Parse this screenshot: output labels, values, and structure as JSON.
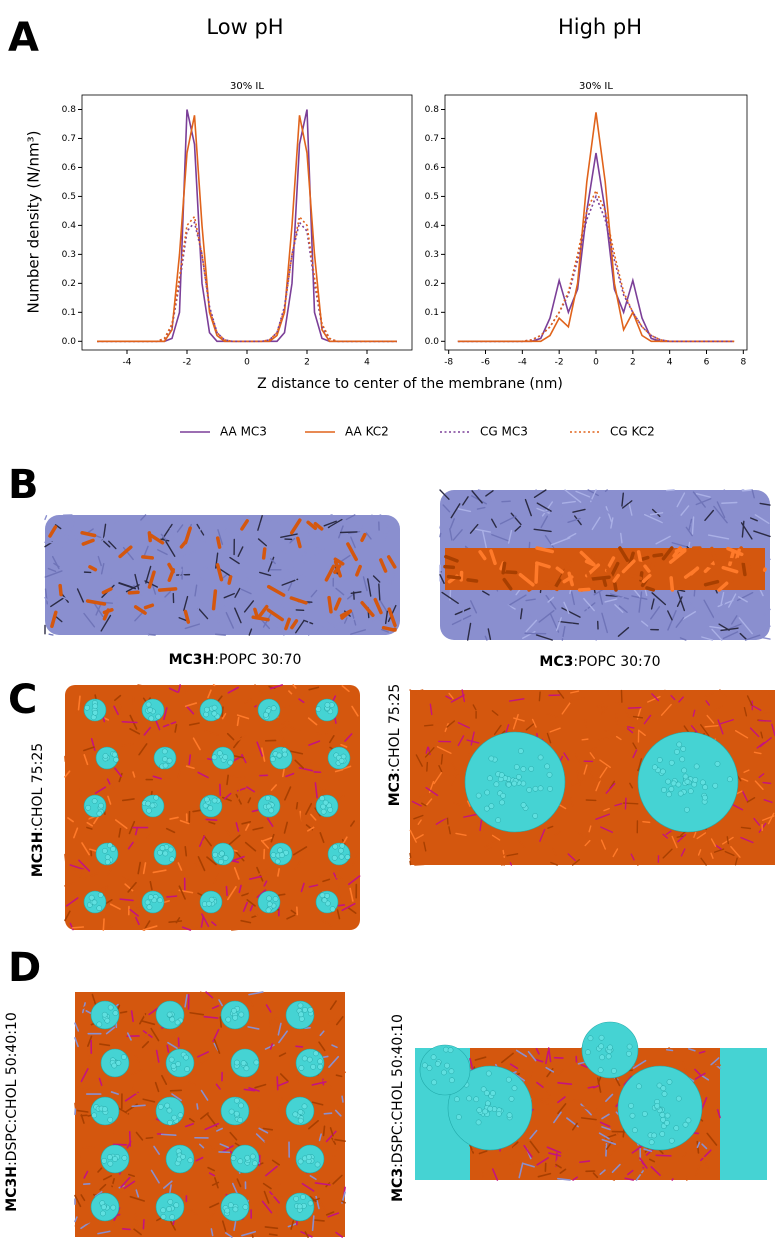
{
  "panel_labels": [
    "A",
    "B",
    "C",
    "D"
  ],
  "column_titles": [
    "Low pH",
    "High pH"
  ],
  "xlabel": "Z distance to center of the membrane (nm)",
  "captions": {
    "B": [
      {
        "bold": "MC3H",
        "text": ":POPC 30:70"
      },
      {
        "bold": "MC3",
        "text": ":POPC 30:70"
      }
    ],
    "C": [
      {
        "bold": "MC3H",
        "text": ":CHOL 75:25"
      },
      {
        "bold": "MC3",
        "text": ":CHOL 75:25"
      }
    ],
    "D": [
      {
        "bold": "MC3H",
        "text": ":DSPC:CHOL 50:40:10"
      },
      {
        "bold": "MC3",
        "text": ":DSPC:CHOL 50:40:10"
      }
    ]
  },
  "chart_data": [
    {
      "type": "line",
      "title": "30% IL",
      "ylabel": "Number density (N/nm³)",
      "x": [
        -5,
        -3,
        -2.75,
        -2.5,
        -2.25,
        -2,
        -1.75,
        -1.5,
        -1.25,
        -1,
        -0.75,
        -0.5,
        0,
        0.5,
        0.75,
        1,
        1.25,
        1.5,
        1.75,
        2,
        2.25,
        2.5,
        2.75,
        3,
        5
      ],
      "series": [
        {
          "name": "AA MC3",
          "color": "#7b3f98",
          "linestyle": "solid",
          "values": [
            0,
            0,
            0,
            0.01,
            0.1,
            0.8,
            0.68,
            0.2,
            0.03,
            0,
            0,
            0,
            0,
            0,
            0,
            0,
            0.03,
            0.2,
            0.68,
            0.8,
            0.1,
            0.01,
            0,
            0,
            0
          ]
        },
        {
          "name": "AA KC2",
          "color": "#e0631b",
          "linestyle": "solid",
          "values": [
            0,
            0,
            0,
            0.04,
            0.3,
            0.65,
            0.78,
            0.4,
            0.1,
            0.02,
            0,
            0,
            0,
            0,
            0,
            0.02,
            0.1,
            0.4,
            0.78,
            0.65,
            0.3,
            0.04,
            0,
            0,
            0
          ]
        },
        {
          "name": "CG MC3",
          "color": "#7b3f98",
          "linestyle": "dotted",
          "values": [
            0,
            0,
            0.01,
            0.05,
            0.2,
            0.38,
            0.41,
            0.3,
            0.12,
            0.03,
            0.005,
            0,
            0,
            0,
            0.005,
            0.03,
            0.12,
            0.3,
            0.41,
            0.38,
            0.2,
            0.05,
            0.01,
            0,
            0
          ]
        },
        {
          "name": "CG KC2",
          "color": "#e0631b",
          "linestyle": "dotted",
          "values": [
            0,
            0,
            0.01,
            0.06,
            0.22,
            0.4,
            0.43,
            0.3,
            0.11,
            0.03,
            0.005,
            0,
            0,
            0,
            0.005,
            0.03,
            0.11,
            0.3,
            0.43,
            0.4,
            0.22,
            0.06,
            0.01,
            0,
            0
          ]
        }
      ],
      "xlim": [
        -5.5,
        5.5
      ],
      "xticks": [
        -4,
        -2,
        0,
        2,
        4
      ],
      "ylim": [
        -0.03,
        0.85
      ],
      "yticks": [
        {
          "value": 0,
          "label": "0.0"
        },
        0.1,
        0.2,
        0.3,
        0.4,
        0.5,
        0.6,
        0.7,
        0.8
      ],
      "grid": false
    },
    {
      "type": "line",
      "title": "30% IL",
      "x": [
        -7.5,
        -4,
        -3.5,
        -3,
        -2.5,
        -2,
        -1.5,
        -1,
        -0.5,
        0,
        0.5,
        1,
        1.5,
        2,
        2.5,
        3,
        3.5,
        4,
        7.5
      ],
      "series": [
        {
          "name": "AA MC3",
          "color": "#7b3f98",
          "linestyle": "solid",
          "values": [
            0,
            0,
            0,
            0.01,
            0.08,
            0.21,
            0.1,
            0.18,
            0.45,
            0.65,
            0.45,
            0.18,
            0.1,
            0.21,
            0.08,
            0.01,
            0,
            0,
            0
          ]
        },
        {
          "name": "AA KC2",
          "color": "#e0631b",
          "linestyle": "solid",
          "values": [
            0,
            0,
            0,
            0,
            0.02,
            0.08,
            0.05,
            0.2,
            0.55,
            0.79,
            0.55,
            0.2,
            0.04,
            0.1,
            0.02,
            0,
            0,
            0,
            0
          ]
        },
        {
          "name": "CG MC3",
          "color": "#7b3f98",
          "linestyle": "dotted",
          "values": [
            0,
            0,
            0.005,
            0.02,
            0.05,
            0.1,
            0.16,
            0.28,
            0.42,
            0.5,
            0.42,
            0.28,
            0.16,
            0.1,
            0.05,
            0.02,
            0.005,
            0,
            0
          ]
        },
        {
          "name": "CG KC2",
          "color": "#e0631b",
          "linestyle": "dotted",
          "values": [
            0,
            0,
            0.005,
            0.02,
            0.05,
            0.1,
            0.17,
            0.3,
            0.45,
            0.52,
            0.45,
            0.3,
            0.17,
            0.1,
            0.05,
            0.02,
            0.005,
            0,
            0
          ]
        }
      ],
      "xlim": [
        -8.2,
        8.2
      ],
      "xticks": [
        -8,
        -6,
        -4,
        -2,
        0,
        2,
        4,
        6,
        8
      ],
      "ylim": [
        -0.03,
        0.85
      ],
      "yticks": [
        {
          "value": 0,
          "label": "0.0"
        },
        0.1,
        0.2,
        0.3,
        0.4,
        0.5,
        0.6,
        0.7,
        0.8
      ],
      "grid": false
    }
  ]
}
